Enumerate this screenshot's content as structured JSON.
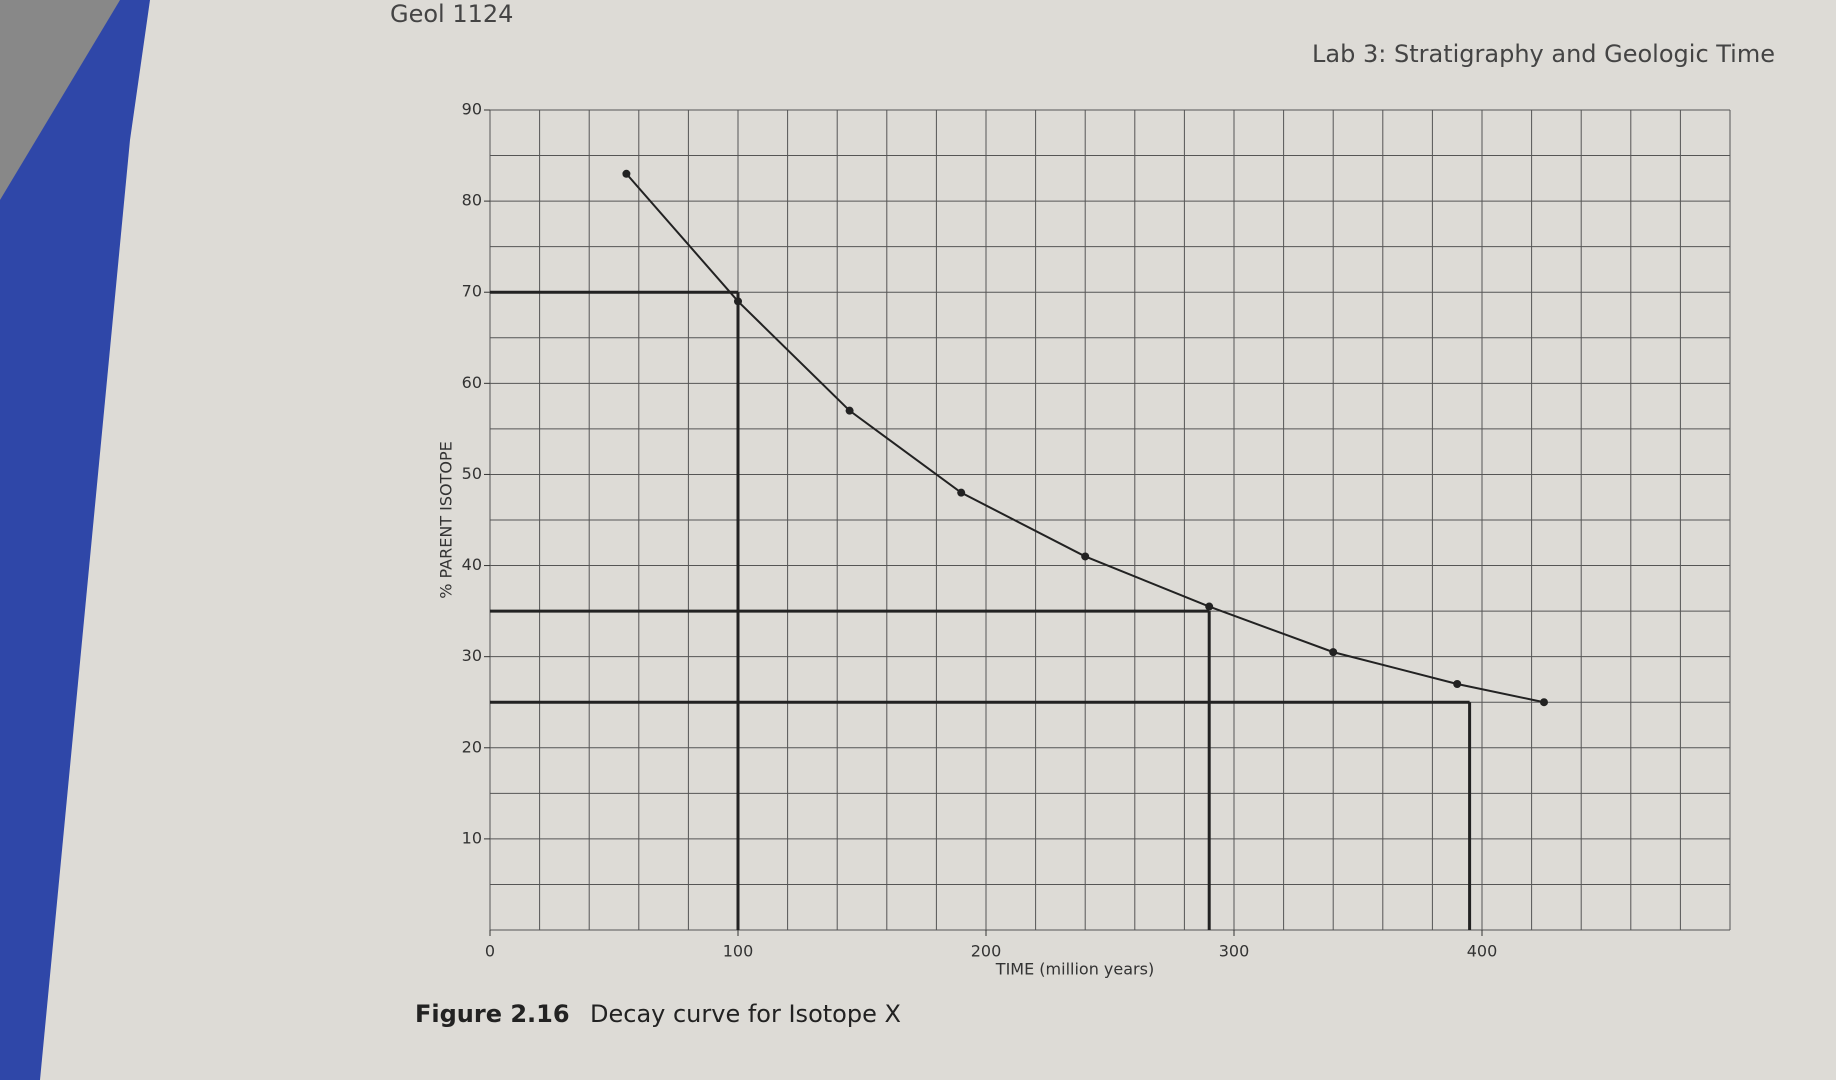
{
  "header": "Geol 1124",
  "lab_title": "Lab 3: Stratigraphy and Geologic Time",
  "caption": {
    "number": "Figure 2.16",
    "text": "Decay curve for Isotope X"
  },
  "chart_data": {
    "type": "line",
    "xlabel": "TIME (million years)",
    "ylabel": "% PARENT ISOTOPE",
    "x": [
      55,
      100,
      145,
      190,
      240,
      290,
      340,
      390,
      425
    ],
    "series": [
      {
        "name": "Isotope X",
        "color": "#222222",
        "values": [
          83,
          69,
          57,
          48,
          41,
          35.5,
          30.5,
          27,
          25
        ]
      }
    ],
    "xlim": [
      0,
      500
    ],
    "ylim": [
      0,
      90
    ],
    "xticks": [
      0,
      100,
      200,
      300,
      400
    ],
    "yticks": [
      10,
      20,
      30,
      40,
      50,
      60,
      70,
      80,
      90
    ],
    "xgrid": [
      0,
      20,
      40,
      60,
      80,
      100,
      120,
      140,
      160,
      180,
      200,
      220,
      240,
      260,
      280,
      300,
      320,
      340,
      360,
      380,
      400,
      420,
      440,
      460,
      480,
      500
    ],
    "ygrid": [
      0,
      5,
      10,
      15,
      20,
      25,
      30,
      35,
      40,
      45,
      50,
      55,
      60,
      65,
      70,
      75,
      80,
      85,
      90
    ],
    "guides": [
      {
        "x": 100,
        "y": 70
      },
      {
        "x": 290,
        "y": 35
      },
      {
        "x": 395,
        "y": 25
      }
    ],
    "grid": true
  }
}
